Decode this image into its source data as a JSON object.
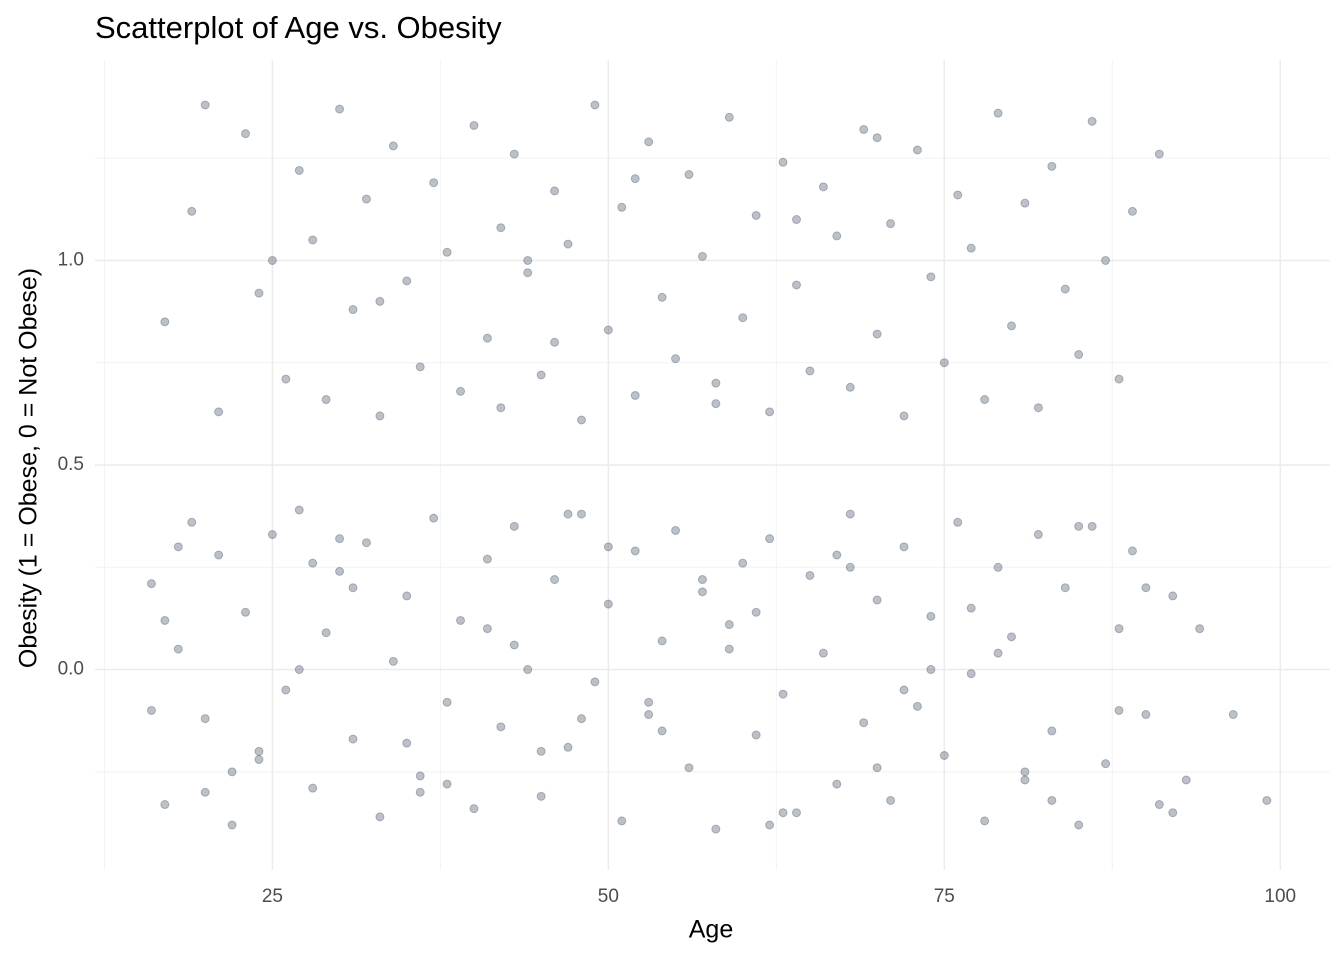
{
  "chart_data": {
    "type": "scatter",
    "title": "Scatterplot of Age vs. Obesity",
    "x_label": "Age",
    "y_label": "Obesity (1 = Obese, 0 = Not Obese)",
    "color": "#2c3e50",
    "opacity": 0.32,
    "grid": true,
    "xlim": [
      11.8,
      103.7
    ],
    "xticks": [
      25,
      50,
      75,
      100
    ],
    "x_minor_ticks": [
      12.5,
      37.5,
      62.5,
      87.5
    ],
    "ylim": [
      -0.49,
      1.49
    ],
    "yticks": [
      {
        "value": 0,
        "label": "0.0"
      },
      0.5,
      {
        "value": 1,
        "label": "1.0"
      }
    ],
    "y_minor_ticks": [
      -0.25,
      0.25,
      0.75,
      1.25
    ],
    "x": [
      17,
      19,
      21,
      23,
      24,
      26,
      27,
      28,
      29,
      30,
      31,
      32,
      33,
      34,
      35,
      36,
      37,
      38,
      39,
      40,
      41,
      42,
      42,
      43,
      44,
      45,
      46,
      47,
      48,
      49,
      50,
      51,
      52,
      53,
      54,
      55,
      56,
      57,
      58,
      59,
      60,
      61,
      62,
      63,
      64,
      65,
      66,
      67,
      68,
      69,
      70,
      71,
      72,
      73,
      74,
      75,
      76,
      77,
      78,
      79,
      80,
      81,
      82,
      83,
      84,
      85,
      86,
      87,
      88,
      89,
      91,
      20,
      25,
      33,
      46,
      52,
      58,
      64,
      70,
      44,
      16,
      17,
      18,
      19,
      20,
      21,
      22,
      23,
      24,
      25,
      26,
      27,
      28,
      29,
      30,
      31,
      32,
      33,
      34,
      35,
      36,
      37,
      38,
      39,
      40,
      41,
      42,
      43,
      44,
      45,
      46,
      47,
      48,
      49,
      50,
      51,
      52,
      53,
      54,
      55,
      56,
      57,
      58,
      59,
      60,
      61,
      62,
      63,
      64,
      65,
      66,
      67,
      68,
      69,
      70,
      71,
      72,
      73,
      74,
      75,
      76,
      77,
      78,
      79,
      80,
      81,
      82,
      83,
      84,
      85,
      86,
      87,
      88,
      89,
      90,
      91,
      92,
      93,
      94,
      96.5,
      99,
      16,
      18,
      22,
      27,
      31,
      36,
      41,
      45,
      50,
      54,
      59,
      63,
      68,
      72,
      77,
      81,
      85,
      88,
      92,
      17,
      24,
      30,
      38,
      43,
      48,
      57,
      62,
      67,
      74,
      20,
      28,
      35,
      47,
      53,
      61,
      70,
      79,
      83,
      90
    ],
    "values": [
      0.85,
      1.12,
      0.63,
      1.31,
      0.92,
      0.71,
      1.22,
      1.05,
      0.66,
      1.37,
      0.88,
      1.15,
      0.62,
      1.28,
      0.95,
      0.74,
      1.19,
      1.02,
      0.68,
      1.33,
      0.81,
      1.08,
      0.64,
      1.26,
      0.97,
      0.72,
      1.17,
      1.04,
      0.61,
      1.38,
      0.83,
      1.13,
      0.67,
      1.29,
      0.91,
      0.76,
      1.21,
      1.01,
      0.65,
      1.35,
      0.86,
      1.11,
      0.63,
      1.24,
      0.94,
      0.73,
      1.18,
      1.06,
      0.69,
      1.32,
      0.82,
      1.09,
      0.62,
      1.27,
      0.96,
      0.75,
      1.16,
      1.03,
      0.66,
      1.36,
      0.84,
      1.14,
      0.64,
      1.23,
      0.93,
      0.77,
      1.34,
      1.0,
      0.71,
      1.12,
      1.26,
      1.38,
      1.0,
      0.9,
      0.8,
      1.2,
      0.7,
      1.1,
      1.3,
      1.0,
      0.21,
      -0.33,
      0.05,
      0.36,
      -0.12,
      0.28,
      -0.38,
      0.14,
      -0.22,
      0.33,
      -0.05,
      0.39,
      -0.29,
      0.09,
      0.24,
      -0.17,
      0.31,
      -0.36,
      0.02,
      0.18,
      -0.26,
      0.37,
      -0.08,
      0.12,
      -0.34,
      0.27,
      -0.14,
      0.35,
      0.0,
      -0.31,
      0.22,
      -0.19,
      0.38,
      -0.03,
      0.16,
      -0.37,
      0.29,
      -0.11,
      0.07,
      0.34,
      -0.24,
      0.19,
      -0.39,
      0.11,
      0.26,
      -0.16,
      0.32,
      -0.06,
      -0.35,
      0.23,
      0.04,
      -0.28,
      0.38,
      -0.13,
      0.17,
      -0.32,
      0.3,
      -0.09,
      0.13,
      -0.21,
      0.36,
      -0.01,
      -0.37,
      0.25,
      0.08,
      -0.27,
      0.33,
      -0.15,
      0.2,
      -0.38,
      0.35,
      -0.23,
      0.1,
      0.29,
      -0.11,
      -0.33,
      0.18,
      -0.27,
      0.1,
      -0.11,
      -0.32,
      -0.1,
      0.3,
      -0.25,
      0.0,
      0.2,
      -0.3,
      0.1,
      -0.2,
      0.3,
      -0.15,
      0.05,
      -0.35,
      0.25,
      -0.05,
      0.15,
      -0.25,
      0.35,
      -0.1,
      -0.35,
      0.12,
      -0.2,
      0.32,
      -0.28,
      0.06,
      -0.12,
      0.22,
      -0.38,
      0.28,
      0.0,
      -0.3,
      0.26,
      -0.18,
      0.38,
      -0.08,
      0.14,
      -0.24,
      0.04,
      -0.32,
      0.2
    ]
  }
}
